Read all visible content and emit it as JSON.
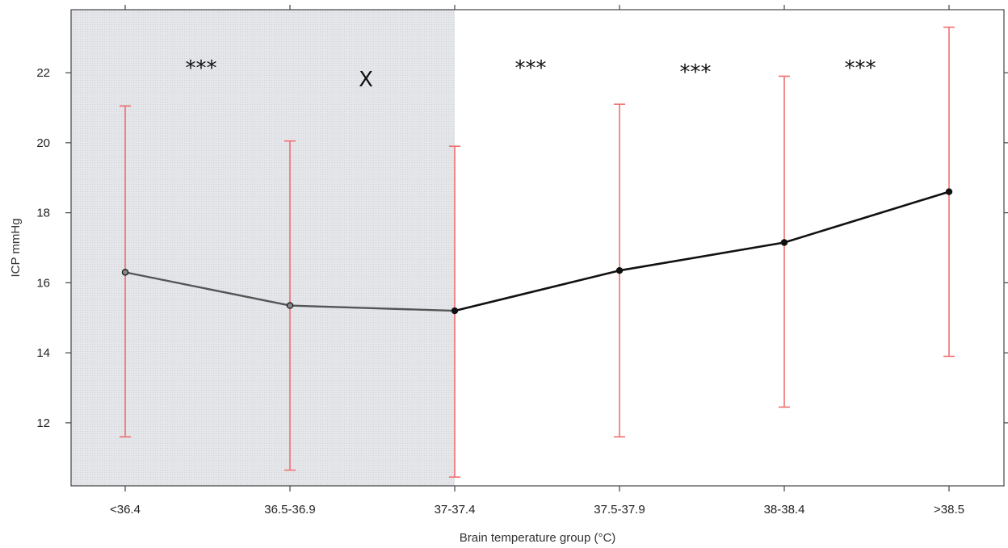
{
  "chart_data": {
    "type": "line",
    "title": "",
    "xlabel": "Brain temperature group (°C)",
    "ylabel": "ICP mmHg",
    "categories": [
      "<36.4",
      "36.5-36.9",
      "37-37.4",
      "37.5-37.9",
      "38-38.4",
      ">38.5"
    ],
    "series": [
      {
        "values": [
          16.3,
          15.35,
          15.2,
          16.35,
          17.15,
          18.6
        ],
        "lower": [
          11.6,
          10.65,
          10.45,
          11.6,
          12.45,
          13.9
        ],
        "upper": [
          21.05,
          20.05,
          19.9,
          21.1,
          21.9,
          23.3
        ]
      }
    ],
    "ylim": [
      10.2,
      23.8
    ],
    "yticks": [
      12,
      14,
      16,
      18,
      20,
      22
    ],
    "shaded_region": {
      "from_category": "<36.4",
      "to_category": "37-37.4"
    },
    "annotations": [
      {
        "text": "***",
        "at": "<36.4"
      },
      {
        "text": "X",
        "at": "36.5-36.9"
      },
      {
        "text": "***",
        "at": "37-37.4"
      },
      {
        "text": "***",
        "at": "37.5-37.9"
      },
      {
        "text": "***",
        "at": "38-38.4"
      }
    ],
    "grid": false,
    "colors": {
      "line": "#111111",
      "line_shaded": "#555555",
      "error_bar": "#f07070",
      "shade": "#e4e6ea"
    }
  }
}
